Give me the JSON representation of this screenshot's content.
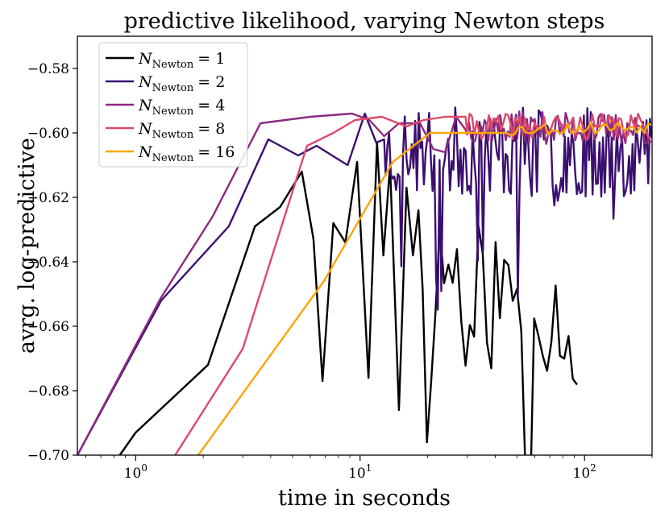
{
  "chart_data": {
    "type": "line",
    "title": "predictive likelihood, varying Newton steps",
    "xlabel": "time in seconds",
    "ylabel": "avrg. log-predictive",
    "xscale": "log",
    "xlim": [
      0.55,
      200
    ],
    "ylim": [
      -0.7,
      -0.57
    ],
    "grid": false,
    "legend_position": "top-left",
    "x_ticks": [
      {
        "value": 1,
        "base": "10",
        "exp": "0"
      },
      {
        "value": 10,
        "base": "10",
        "exp": "1"
      },
      {
        "value": 100,
        "base": "10",
        "exp": "2"
      }
    ],
    "y_ticks": [
      {
        "value": -0.58,
        "label": "−0.58"
      },
      {
        "value": -0.6,
        "label": "−0.60"
      },
      {
        "value": -0.62,
        "label": "−0.62"
      },
      {
        "value": -0.64,
        "label": "−0.64"
      },
      {
        "value": -0.66,
        "label": "−0.66"
      },
      {
        "value": -0.68,
        "label": "−0.68"
      },
      {
        "value": -0.7,
        "label": "−0.70"
      }
    ],
    "series": [
      {
        "name": "N_Newton = 1",
        "legend_symbol": "N",
        "legend_sub": "Newton",
        "legend_value": "= 1",
        "color": "#000004",
        "noise": {
          "seed": 11,
          "x_start": 19,
          "x_end": 95,
          "step": 1.045,
          "center_start": -0.638,
          "center_end": -0.66,
          "amp": 0.02
        }
      },
      {
        "name": "N_Newton = 2",
        "legend_symbol": "N",
        "legend_sub": "Newton",
        "legend_value": "= 2",
        "color": "#3b0f70",
        "noise": {
          "seed": 23,
          "x_start": 13,
          "x_end": 200,
          "step": 1.018,
          "center_start": -0.606,
          "center_end": -0.606,
          "amp": 0.014
        }
      },
      {
        "name": "N_Newton = 4",
        "legend_symbol": "N",
        "legend_sub": "Newton",
        "legend_value": "= 4",
        "color": "#8c2981",
        "noise": {
          "seed": 37,
          "x_start": 30,
          "x_end": 200,
          "step": 1.02,
          "center_start": -0.598,
          "center_end": -0.599,
          "amp": 0.005
        }
      },
      {
        "name": "N_Newton = 8",
        "legend_symbol": "N",
        "legend_sub": "Newton",
        "legend_value": "= 8",
        "color": "#de4968",
        "noise": {
          "seed": 41,
          "x_start": 30,
          "x_end": 200,
          "step": 1.025,
          "center_start": -0.598,
          "center_end": -0.598,
          "amp": 0.004
        }
      },
      {
        "name": "N_Newton = 16",
        "legend_symbol": "N",
        "legend_sub": "Newton",
        "legend_value": "= 16",
        "color": "#fca50a",
        "noise": {
          "seed": 53,
          "x_start": 45,
          "x_end": 200,
          "step": 1.04,
          "center_start": -0.599,
          "center_end": -0.598,
          "amp": 0.002
        }
      }
    ],
    "series_points": [
      [
        [
          0.85,
          -0.7
        ],
        [
          1.0,
          -0.693
        ],
        [
          2.1,
          -0.672
        ],
        [
          3.4,
          -0.629
        ],
        [
          4.4,
          -0.623
        ],
        [
          5.5,
          -0.612
        ],
        [
          6.2,
          -0.633
        ],
        [
          6.8,
          -0.677
        ],
        [
          7.6,
          -0.628
        ],
        [
          8.6,
          -0.634
        ],
        [
          9.7,
          -0.609
        ],
        [
          10.9,
          -0.676
        ],
        [
          11.9,
          -0.603
        ],
        [
          12.7,
          -0.638
        ],
        [
          13.6,
          -0.61
        ],
        [
          14.9,
          -0.686
        ],
        [
          16.1,
          -0.617
        ],
        [
          17.2,
          -0.638
        ],
        [
          18.2,
          -0.624
        ]
      ],
      [
        [
          0.55,
          -0.7
        ],
        [
          1.3,
          -0.652
        ],
        [
          2.6,
          -0.629
        ],
        [
          3.9,
          -0.602
        ],
        [
          5.3,
          -0.607
        ],
        [
          6.4,
          -0.604
        ],
        [
          8.8,
          -0.61
        ],
        [
          10.5,
          -0.594
        ],
        [
          11.8,
          -0.603
        ],
        [
          12.8,
          -0.602
        ]
      ],
      [
        [
          0.55,
          -0.7
        ],
        [
          1.3,
          -0.651
        ],
        [
          2.2,
          -0.626
        ],
        [
          3.6,
          -0.597
        ],
        [
          6.0,
          -0.595
        ],
        [
          9.2,
          -0.594
        ],
        [
          11.0,
          -0.596
        ],
        [
          12.8,
          -0.601
        ],
        [
          14.9,
          -0.597
        ],
        [
          18.5,
          -0.597
        ],
        [
          21.2,
          -0.605
        ],
        [
          23.9,
          -0.606
        ],
        [
          26.8,
          -0.595
        ],
        [
          29.5,
          -0.599
        ]
      ],
      [
        [
          1.5,
          -0.7
        ],
        [
          3.0,
          -0.667
        ],
        [
          5.8,
          -0.604
        ],
        [
          7.6,
          -0.6
        ],
        [
          9.5,
          -0.596
        ],
        [
          12.5,
          -0.595
        ],
        [
          16.1,
          -0.598
        ],
        [
          19.2,
          -0.596
        ],
        [
          24.0,
          -0.595
        ],
        [
          29.5,
          -0.595
        ]
      ],
      [
        [
          1.9,
          -0.7
        ],
        [
          6.9,
          -0.646
        ],
        [
          14.0,
          -0.609
        ],
        [
          20.5,
          -0.6
        ],
        [
          33.0,
          -0.6
        ],
        [
          44.0,
          -0.6
        ]
      ]
    ]
  }
}
